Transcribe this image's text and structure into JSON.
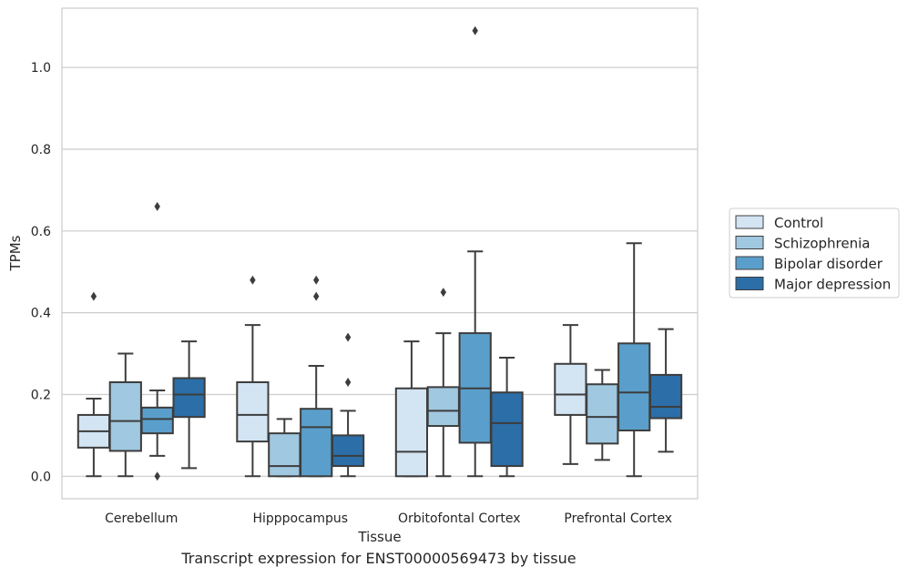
{
  "chart_data": {
    "type": "box",
    "xlabel": "Tissue",
    "ylabel": "TPMs",
    "caption": "Transcript expression for ENST00000569473 by tissue",
    "ylim": [
      -0.055,
      1.145
    ],
    "yticks": [
      0.0,
      0.2,
      0.4,
      0.6,
      0.8,
      1.0
    ],
    "ytick_labels": [
      "0.0",
      "0.2",
      "0.4",
      "0.6",
      "0.8",
      "1.0"
    ],
    "grid": true,
    "legend_position": "right",
    "categories": [
      "Cerebellum",
      "Hipppocampus",
      "Orbitofontal Cortex",
      "Prefrontal Cortex"
    ],
    "series": [
      {
        "name": "Control",
        "color": "#d3e4f3",
        "boxes": [
          {
            "whislo": 0.0,
            "q1": 0.07,
            "med": 0.11,
            "q3": 0.15,
            "whishi": 0.19,
            "fliers": [
              0.44
            ]
          },
          {
            "whislo": 0.0,
            "q1": 0.085,
            "med": 0.15,
            "q3": 0.23,
            "whishi": 0.37,
            "fliers": [
              0.48
            ]
          },
          {
            "whislo": 0.0,
            "q1": 0.0,
            "med": 0.06,
            "q3": 0.215,
            "whishi": 0.33,
            "fliers": []
          },
          {
            "whislo": 0.03,
            "q1": 0.15,
            "med": 0.2,
            "q3": 0.275,
            "whishi": 0.37,
            "fliers": []
          }
        ]
      },
      {
        "name": "Schizophrenia",
        "color": "#a0c8e0",
        "boxes": [
          {
            "whislo": 0.0,
            "q1": 0.062,
            "med": 0.135,
            "q3": 0.23,
            "whishi": 0.3,
            "fliers": []
          },
          {
            "whislo": 0.0,
            "q1": 0.0,
            "med": 0.025,
            "q3": 0.105,
            "whishi": 0.14,
            "fliers": []
          },
          {
            "whislo": 0.0,
            "q1": 0.123,
            "med": 0.16,
            "q3": 0.218,
            "whishi": 0.35,
            "fliers": [
              0.45
            ]
          },
          {
            "whislo": 0.04,
            "q1": 0.08,
            "med": 0.145,
            "q3": 0.225,
            "whishi": 0.26,
            "fliers": []
          }
        ]
      },
      {
        "name": "Bipolar disorder",
        "color": "#5a9fcb",
        "boxes": [
          {
            "whislo": 0.05,
            "q1": 0.105,
            "med": 0.14,
            "q3": 0.168,
            "whishi": 0.21,
            "fliers": [
              0.0,
              0.66
            ]
          },
          {
            "whislo": 0.0,
            "q1": 0.0,
            "med": 0.12,
            "q3": 0.165,
            "whishi": 0.27,
            "fliers": [
              0.44,
              0.48
            ]
          },
          {
            "whislo": 0.0,
            "q1": 0.082,
            "med": 0.215,
            "q3": 0.35,
            "whishi": 0.55,
            "fliers": [
              1.09
            ]
          },
          {
            "whislo": 0.0,
            "q1": 0.112,
            "med": 0.205,
            "q3": 0.325,
            "whishi": 0.57,
            "fliers": []
          }
        ]
      },
      {
        "name": "Major depression",
        "color": "#2b6ea8",
        "boxes": [
          {
            "whislo": 0.02,
            "q1": 0.145,
            "med": 0.2,
            "q3": 0.24,
            "whishi": 0.33,
            "fliers": []
          },
          {
            "whislo": 0.0,
            "q1": 0.025,
            "med": 0.05,
            "q3": 0.1,
            "whishi": 0.16,
            "fliers": [
              0.23,
              0.34
            ]
          },
          {
            "whislo": 0.0,
            "q1": 0.025,
            "med": 0.13,
            "q3": 0.205,
            "whishi": 0.29,
            "fliers": []
          },
          {
            "whislo": 0.06,
            "q1": 0.142,
            "med": 0.17,
            "q3": 0.248,
            "whishi": 0.36,
            "fliers": []
          }
        ]
      }
    ],
    "style": {
      "box_edge": "#3d3d3d",
      "grid": "#cccccc",
      "frame": "#cccccc"
    }
  }
}
